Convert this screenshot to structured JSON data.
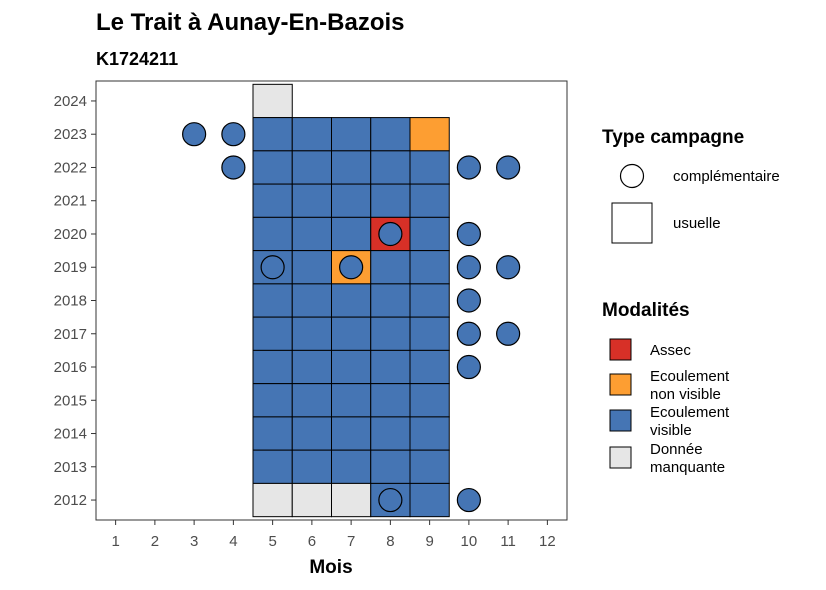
{
  "chart_data": {
    "type": "heatmap",
    "title": "Le Trait à Aunay-En-Bazois",
    "subtitle": "K1724211",
    "xlabel": "Mois",
    "ylabel": "",
    "x_ticks": [
      1,
      2,
      3,
      4,
      5,
      6,
      7,
      8,
      9,
      10,
      11,
      12
    ],
    "y_ticks": [
      2012,
      2013,
      2014,
      2015,
      2016,
      2017,
      2018,
      2019,
      2020,
      2021,
      2022,
      2023,
      2024
    ],
    "xlim": [
      0.5,
      12.5
    ],
    "ylim": [
      2011.4,
      2024.6
    ],
    "colors": {
      "assec": "#d73027",
      "nonvisible": "#fd9e32",
      "visible": "#4575b4",
      "manquante": "#e6e6e6"
    },
    "usuelle": [
      {
        "year": 2024,
        "cells": [
          [
            5,
            "manquante"
          ]
        ]
      },
      {
        "year": 2023,
        "cells": [
          [
            5,
            "visible"
          ],
          [
            6,
            "visible"
          ],
          [
            7,
            "visible"
          ],
          [
            8,
            "visible"
          ],
          [
            9,
            "nonvisible"
          ]
        ]
      },
      {
        "year": 2022,
        "cells": [
          [
            5,
            "visible"
          ],
          [
            6,
            "visible"
          ],
          [
            7,
            "visible"
          ],
          [
            8,
            "visible"
          ],
          [
            9,
            "visible"
          ]
        ]
      },
      {
        "year": 2021,
        "cells": [
          [
            5,
            "visible"
          ],
          [
            6,
            "visible"
          ],
          [
            7,
            "visible"
          ],
          [
            8,
            "visible"
          ],
          [
            9,
            "visible"
          ]
        ]
      },
      {
        "year": 2020,
        "cells": [
          [
            5,
            "visible"
          ],
          [
            6,
            "visible"
          ],
          [
            7,
            "visible"
          ],
          [
            8,
            "assec"
          ],
          [
            9,
            "visible"
          ]
        ]
      },
      {
        "year": 2019,
        "cells": [
          [
            5,
            "visible"
          ],
          [
            6,
            "visible"
          ],
          [
            7,
            "nonvisible"
          ],
          [
            8,
            "visible"
          ],
          [
            9,
            "visible"
          ]
        ]
      },
      {
        "year": 2018,
        "cells": [
          [
            5,
            "visible"
          ],
          [
            6,
            "visible"
          ],
          [
            7,
            "visible"
          ],
          [
            8,
            "visible"
          ],
          [
            9,
            "visible"
          ]
        ]
      },
      {
        "year": 2017,
        "cells": [
          [
            5,
            "visible"
          ],
          [
            6,
            "visible"
          ],
          [
            7,
            "visible"
          ],
          [
            8,
            "visible"
          ],
          [
            9,
            "visible"
          ]
        ]
      },
      {
        "year": 2016,
        "cells": [
          [
            5,
            "visible"
          ],
          [
            6,
            "visible"
          ],
          [
            7,
            "visible"
          ],
          [
            8,
            "visible"
          ],
          [
            9,
            "visible"
          ]
        ]
      },
      {
        "year": 2015,
        "cells": [
          [
            5,
            "visible"
          ],
          [
            6,
            "visible"
          ],
          [
            7,
            "visible"
          ],
          [
            8,
            "visible"
          ],
          [
            9,
            "visible"
          ]
        ]
      },
      {
        "year": 2014,
        "cells": [
          [
            5,
            "visible"
          ],
          [
            6,
            "visible"
          ],
          [
            7,
            "visible"
          ],
          [
            8,
            "visible"
          ],
          [
            9,
            "visible"
          ]
        ]
      },
      {
        "year": 2013,
        "cells": [
          [
            5,
            "visible"
          ],
          [
            6,
            "visible"
          ],
          [
            7,
            "visible"
          ],
          [
            8,
            "visible"
          ],
          [
            9,
            "visible"
          ]
        ]
      },
      {
        "year": 2012,
        "cells": [
          [
            5,
            "manquante"
          ],
          [
            6,
            "manquante"
          ],
          [
            7,
            "manquante"
          ],
          [
            8,
            "visible"
          ],
          [
            9,
            "visible"
          ]
        ]
      }
    ],
    "complementaire": [
      {
        "year": 2023,
        "months": [
          3,
          4
        ]
      },
      {
        "year": 2022,
        "months": [
          4,
          10,
          11
        ]
      },
      {
        "year": 2020,
        "months": [
          8,
          10
        ]
      },
      {
        "year": 2019,
        "months": [
          5,
          7,
          10,
          11
        ]
      },
      {
        "year": 2018,
        "months": [
          10
        ]
      },
      {
        "year": 2017,
        "months": [
          10,
          11
        ]
      },
      {
        "year": 2016,
        "months": [
          10
        ]
      },
      {
        "year": 2012,
        "months": [
          8,
          10
        ]
      }
    ],
    "legend_position": "right",
    "legend_type": {
      "title": "Type campagne",
      "items": [
        {
          "shape": "circle",
          "label": "complémentaire"
        },
        {
          "shape": "square",
          "label": "usuelle"
        }
      ]
    },
    "legend_modalites": {
      "title": "Modalités",
      "items": [
        {
          "key": "assec",
          "lines": [
            "Assec"
          ]
        },
        {
          "key": "nonvisible",
          "lines": [
            "Ecoulement",
            "non visible"
          ]
        },
        {
          "key": "visible",
          "lines": [
            "Ecoulement",
            "visible"
          ]
        },
        {
          "key": "manquante",
          "lines": [
            "Donnée",
            "manquante"
          ]
        }
      ]
    }
  }
}
